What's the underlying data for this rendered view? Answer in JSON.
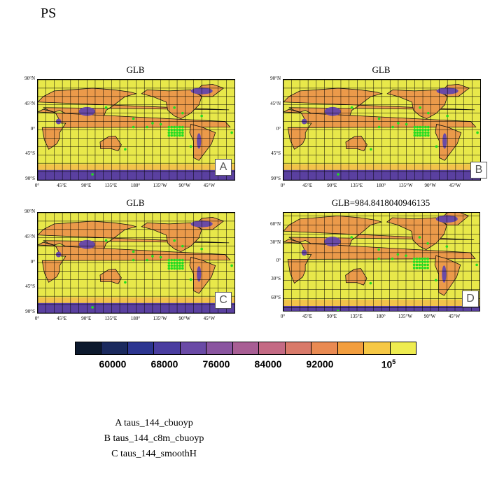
{
  "title": "PS",
  "panels": [
    {
      "title": "GLB",
      "letter": "A",
      "y_ticks": [
        "90°N",
        "45°N",
        "0°",
        "45°S",
        "90°S"
      ],
      "x_ticks": [
        "0°",
        "45°E",
        "90°E",
        "135°E",
        "180°",
        "135°W",
        "90°W",
        "45°W"
      ]
    },
    {
      "title": "GLB",
      "letter": "B",
      "y_ticks": [
        "90°N",
        "45°N",
        "0°",
        "45°S",
        "90°S"
      ],
      "x_ticks": [
        "0°",
        "45°E",
        "90°E",
        "135°E",
        "180°",
        "135°W",
        "90°W",
        "45°W"
      ]
    },
    {
      "title": "GLB",
      "letter": "C",
      "y_ticks": [
        "90°N",
        "45°N",
        "0°",
        "45°S",
        "90°S"
      ],
      "x_ticks": [
        "0°",
        "45°E",
        "90°E",
        "135°E",
        "180°",
        "135°W",
        "90°W",
        "45°W"
      ]
    },
    {
      "title": "GLB=984.8418040946135",
      "letter": "D",
      "y_ticks": [
        "60°N",
        "30°N",
        "0°",
        "30°S",
        "60°S"
      ],
      "x_ticks": [
        "0°",
        "45°E",
        "90°E",
        "135°E",
        "180°",
        "135°W",
        "90°W",
        "45°W"
      ]
    }
  ],
  "colorbar": {
    "colors": [
      "#0d1a2e",
      "#1b2a5e",
      "#2c3590",
      "#4a3da0",
      "#6a4aa6",
      "#8a55a0",
      "#a85e94",
      "#c46a84",
      "#d97a6a",
      "#e98a52",
      "#f29e3e",
      "#f6c845",
      "#eeec50"
    ],
    "labels": [
      "60000",
      "68000",
      "76000",
      "84000",
      "92000"
    ],
    "label_last_base": "10",
    "label_last_exp": "5"
  },
  "legend": [
    "A  taus_144_cbuoyp",
    "B  taus_144_c8m_cbuoyp",
    "C  taus_144_smoothH"
  ]
}
